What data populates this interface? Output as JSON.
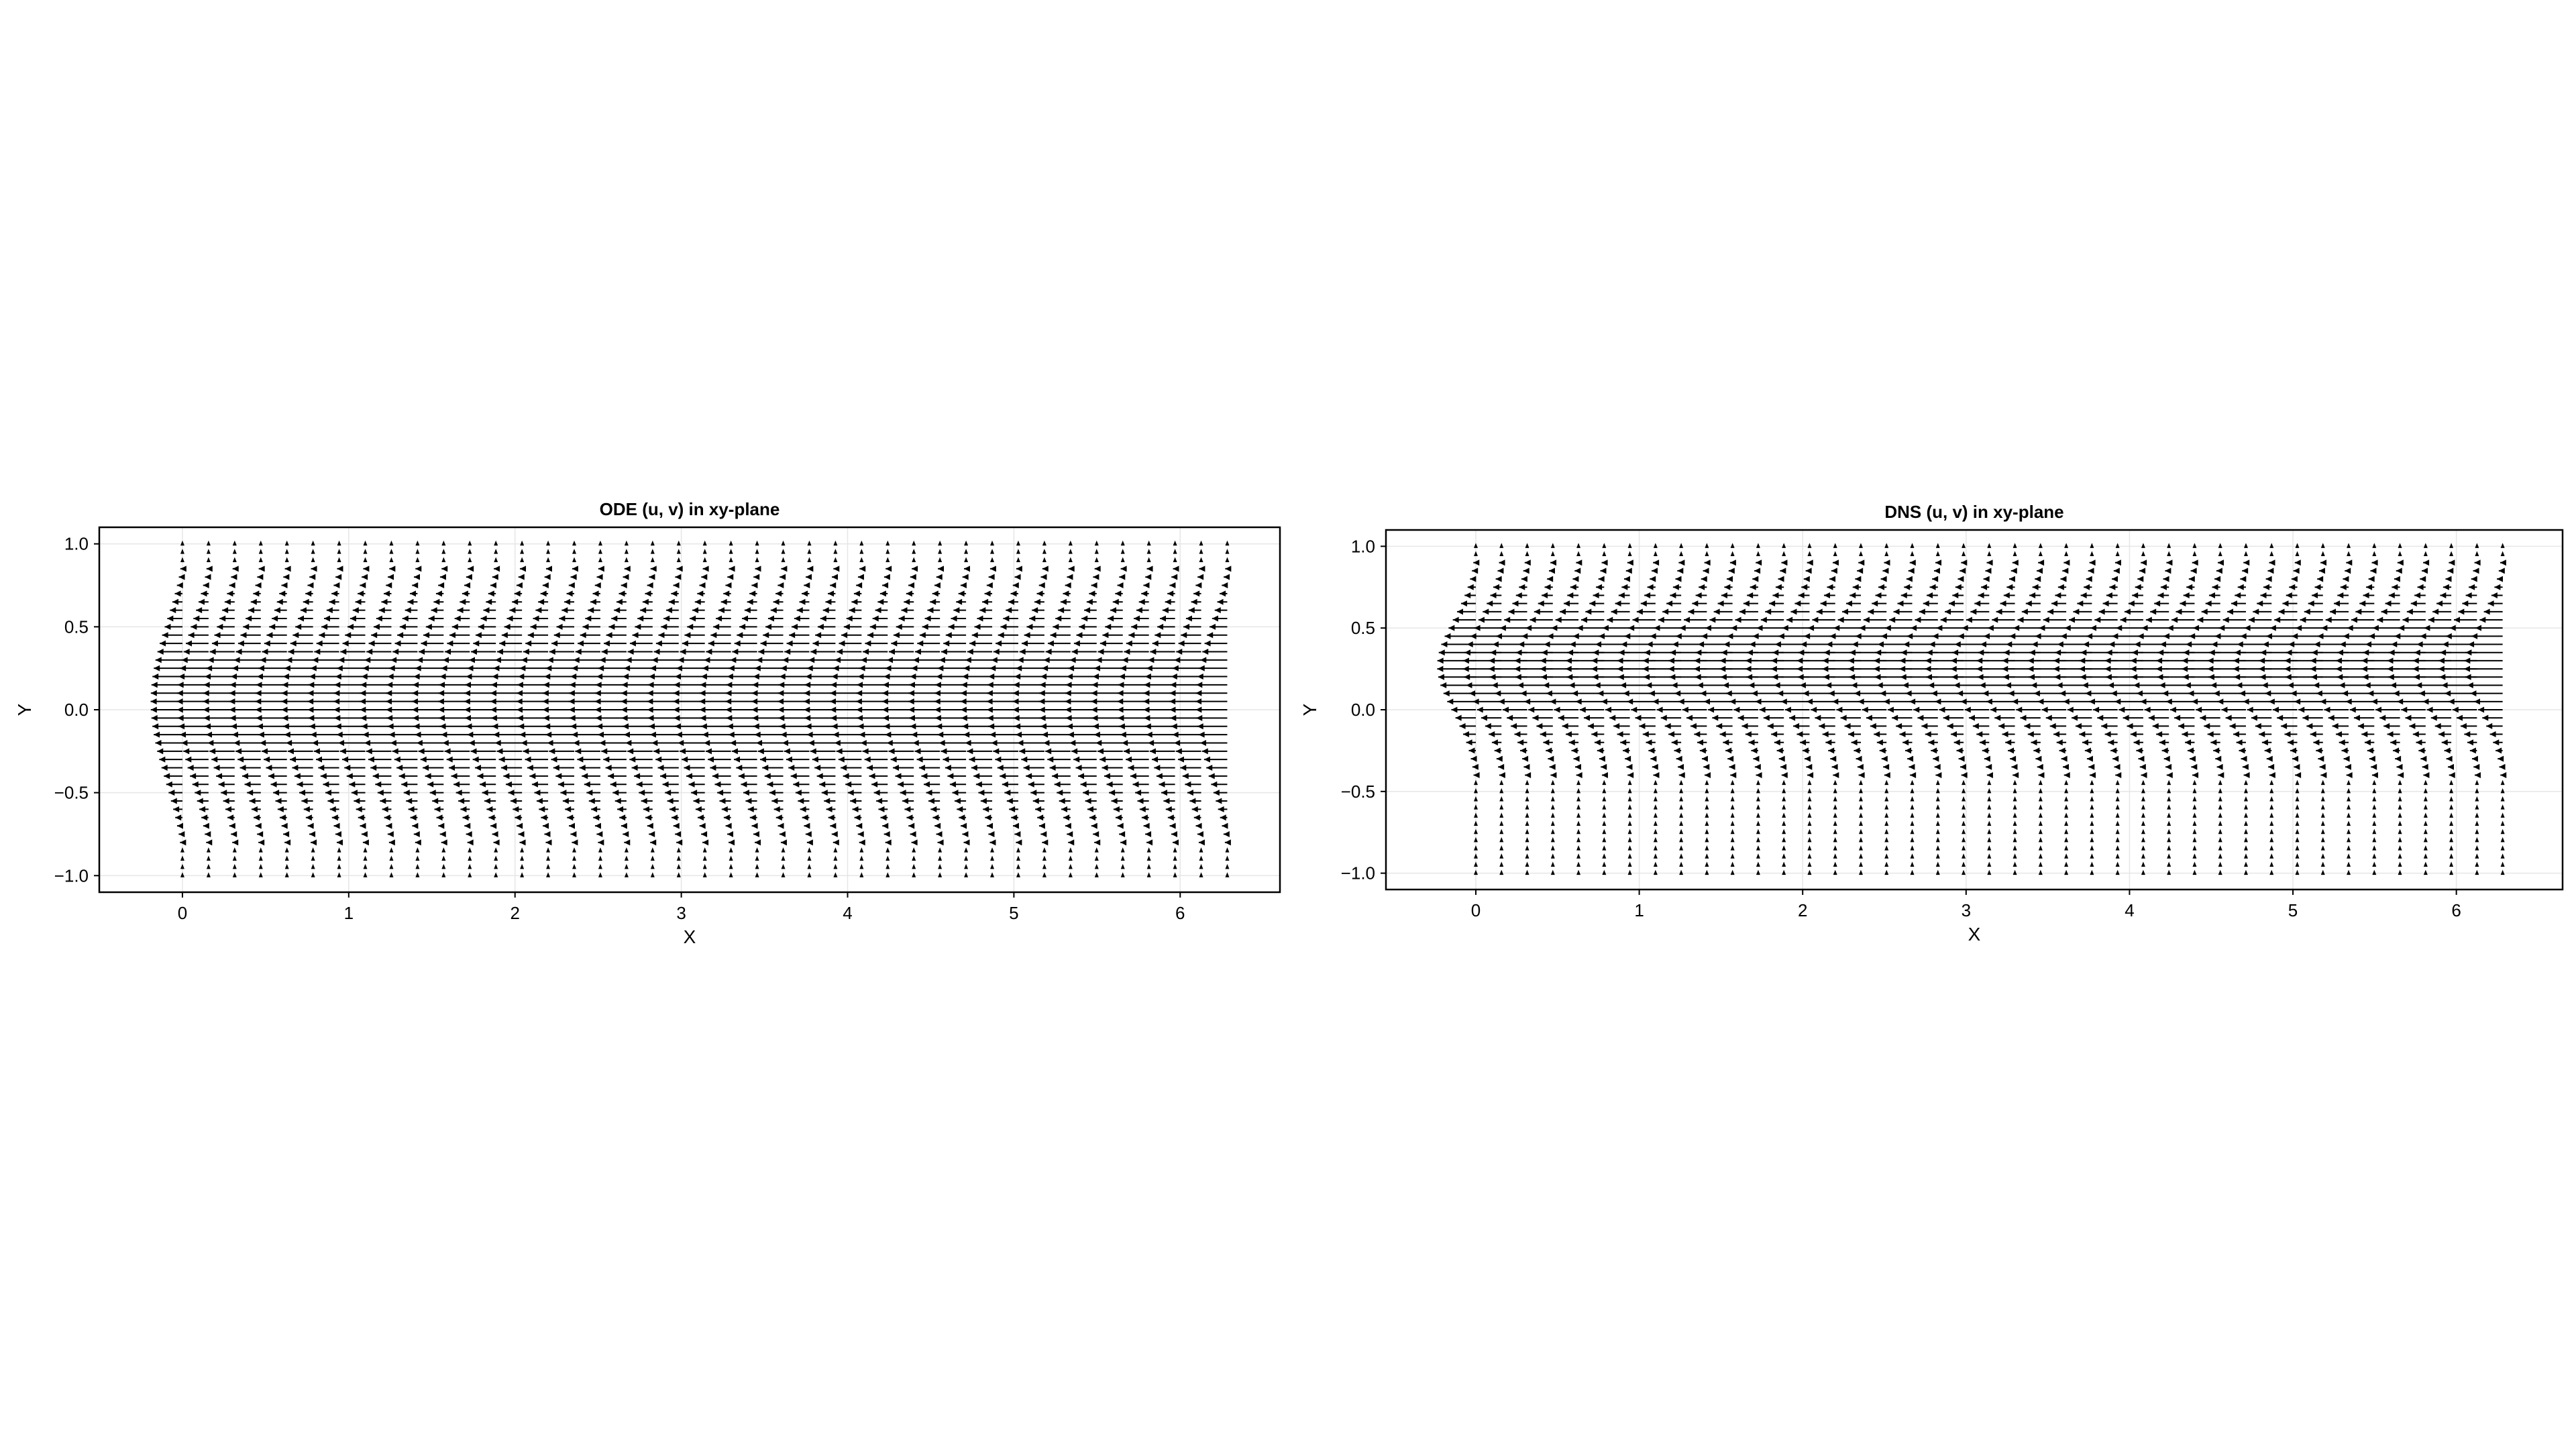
{
  "chart_data": [
    {
      "type": "quiver",
      "title": "ODE (u, v) in xy-plane",
      "xlabel": "X",
      "ylabel": "Y",
      "xlim": [
        -0.5,
        6.6
      ],
      "ylim": [
        -1.1,
        1.1
      ],
      "xticks": [
        0,
        1,
        2,
        3,
        4,
        5,
        6
      ],
      "xtick_labels": [
        "0",
        "1",
        "2",
        "3",
        "4",
        "5",
        "6"
      ],
      "yticks": [
        -1.0,
        -0.5,
        0.0,
        0.5,
        1.0
      ],
      "ytick_labels": [
        "−1.0",
        "−0.5",
        "0.0",
        "0.5",
        "1.0"
      ],
      "grid": true,
      "legend": "none",
      "field": {
        "x_start": 0.0,
        "x_end": 6.2832,
        "x_count": 41,
        "y_count": 41,
        "y_start": -1.0,
        "y_end": 1.0,
        "profile": "ode",
        "u_peak": -0.19,
        "u_peak_y": 0.1,
        "u_wall": 0.0,
        "v_rel": 0.0
      },
      "arrow_color": "#000000"
    },
    {
      "type": "quiver",
      "title": "DNS (u, v) in xy-plane",
      "xlabel": "X",
      "ylabel": "Y",
      "xlim": [
        -0.55,
        6.65
      ],
      "ylim": [
        -1.1,
        1.1
      ],
      "xticks": [
        0,
        1,
        2,
        3,
        4,
        5,
        6
      ],
      "xtick_labels": [
        "0",
        "1",
        "2",
        "3",
        "4",
        "5",
        "6"
      ],
      "yticks": [
        -1.0,
        -0.5,
        0.0,
        0.5,
        1.0
      ],
      "ytick_labels": [
        "−1.0",
        "−0.5",
        "0.0",
        "0.5",
        "1.0"
      ],
      "grid": true,
      "legend": "none",
      "field": {
        "x_start": 0.0,
        "x_end": 6.2832,
        "x_count": 41,
        "y_count": 41,
        "y_start": -1.0,
        "y_end": 1.0,
        "profile": "dns",
        "u_peak": -0.25,
        "u_peak_y": 0.3,
        "u_wall": 0.0,
        "v_rel": 0.0
      },
      "arrow_color": "#000000"
    }
  ]
}
